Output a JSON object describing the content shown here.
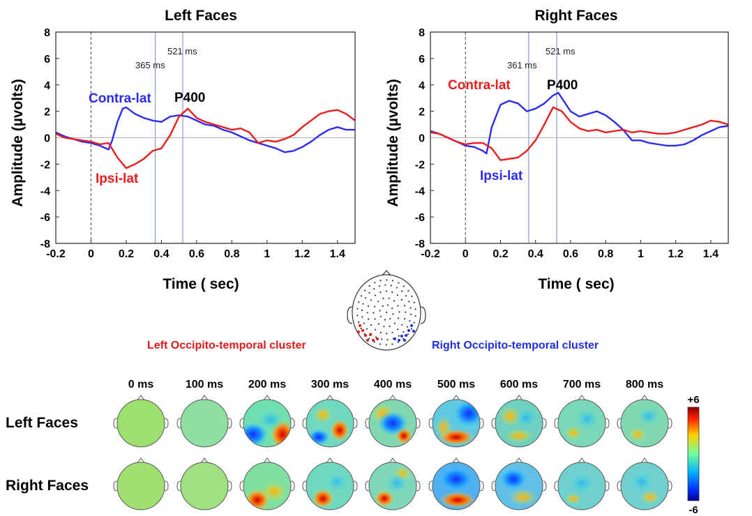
{
  "colors": {
    "contra_left": "#2b2bf5",
    "ipsi_left": "#ea1c1c",
    "contra_right": "#ea1c1c",
    "ipsi_right": "#2b2bf5",
    "marker_line": "#8aa8d8",
    "cluster_left": "#e0191c",
    "cluster_right": "#1f2fe0"
  },
  "chart_data": [
    {
      "type": "line",
      "title": "Left Faces",
      "xlabel": "Time ( sec)",
      "ylabel": "Amplitude (µvolts)",
      "xlim": [
        -0.2,
        1.5
      ],
      "ylim": [
        -8,
        8
      ],
      "xticks": [
        "-0.2",
        "0",
        "0.2",
        "0.4",
        "0.6",
        "0.8",
        "1",
        "1.2",
        "1.4"
      ],
      "yticks": [
        "8",
        "6",
        "4",
        "2",
        "0",
        "-2",
        "-4",
        "-6",
        "-8"
      ],
      "markers": [
        {
          "t": 0.365,
          "label": "365 ms"
        },
        {
          "t": 0.521,
          "label": "521 ms"
        }
      ],
      "annotations": {
        "peak": "P400",
        "contra": "Contra-lat",
        "ipsi": "Ipsi-lat"
      },
      "series": [
        {
          "name": "Contra-lat",
          "x": [
            -0.2,
            -0.15,
            -0.1,
            -0.05,
            0,
            0.05,
            0.1,
            0.12,
            0.15,
            0.18,
            0.2,
            0.25,
            0.3,
            0.35,
            0.4,
            0.45,
            0.5,
            0.55,
            0.6,
            0.65,
            0.7,
            0.75,
            0.8,
            0.85,
            0.9,
            0.95,
            1.0,
            1.05,
            1.1,
            1.15,
            1.2,
            1.25,
            1.3,
            1.35,
            1.4,
            1.45,
            1.5
          ],
          "y": [
            0.4,
            0.1,
            -0.1,
            -0.3,
            -0.4,
            -0.6,
            -0.9,
            -0.2,
            1.2,
            2.2,
            2.3,
            1.8,
            1.5,
            1.3,
            1.2,
            1.6,
            1.7,
            1.6,
            1.3,
            1.0,
            0.9,
            0.6,
            0.4,
            0.1,
            -0.2,
            -0.4,
            -0.6,
            -0.8,
            -1.1,
            -1.0,
            -0.7,
            -0.3,
            0.2,
            0.6,
            0.8,
            0.6,
            0.6
          ]
        },
        {
          "name": "Ipsi-lat",
          "x": [
            -0.2,
            -0.15,
            -0.1,
            -0.05,
            0,
            0.05,
            0.1,
            0.15,
            0.2,
            0.25,
            0.3,
            0.35,
            0.4,
            0.45,
            0.5,
            0.55,
            0.6,
            0.65,
            0.7,
            0.75,
            0.8,
            0.85,
            0.9,
            0.95,
            1.0,
            1.05,
            1.1,
            1.15,
            1.2,
            1.25,
            1.3,
            1.35,
            1.4,
            1.45,
            1.5
          ],
          "y": [
            0.3,
            0.0,
            -0.1,
            -0.2,
            -0.3,
            -0.5,
            -0.4,
            -1.5,
            -2.3,
            -2.0,
            -1.6,
            -1.0,
            -0.8,
            0.2,
            1.6,
            2.2,
            1.5,
            1.2,
            1.0,
            0.8,
            0.6,
            0.7,
            0.4,
            -0.4,
            -0.2,
            -0.3,
            -0.1,
            0.2,
            0.8,
            1.3,
            1.8,
            2.0,
            2.1,
            1.8,
            1.3
          ]
        }
      ]
    },
    {
      "type": "line",
      "title": "Right Faces",
      "xlabel": "Time ( sec)",
      "ylabel": "Amplitude (µvolts)",
      "xlim": [
        -0.2,
        1.5
      ],
      "ylim": [
        -8,
        8
      ],
      "xticks": [
        "-0.2",
        "0",
        "0.2",
        "0.4",
        "0.6",
        "0.8",
        "1",
        "1.2",
        "1.4"
      ],
      "yticks": [
        "8",
        "6",
        "4",
        "2",
        "0",
        "-2",
        "-4",
        "-6",
        "-8"
      ],
      "markers": [
        {
          "t": 0.361,
          "label": "361 ms"
        },
        {
          "t": 0.521,
          "label": "521 ms"
        }
      ],
      "annotations": {
        "peak": "P400",
        "contra": "Contra-lat",
        "ipsi": "Ipsi-lat"
      },
      "series": [
        {
          "name": "Contra-lat",
          "x": [
            -0.2,
            -0.15,
            -0.1,
            -0.05,
            0,
            0.05,
            0.1,
            0.12,
            0.15,
            0.2,
            0.25,
            0.3,
            0.35,
            0.4,
            0.45,
            0.5,
            0.53,
            0.55,
            0.6,
            0.65,
            0.7,
            0.75,
            0.8,
            0.85,
            0.9,
            0.95,
            1.0,
            1.05,
            1.1,
            1.15,
            1.2,
            1.25,
            1.3,
            1.35,
            1.4,
            1.45,
            1.5
          ],
          "y": [
            0.5,
            0.3,
            0.0,
            -0.3,
            -0.6,
            -0.7,
            -1.0,
            -1.2,
            0.8,
            2.5,
            2.8,
            2.6,
            2.0,
            2.2,
            2.6,
            3.2,
            3.4,
            3.0,
            2.0,
            1.6,
            1.8,
            2.0,
            1.7,
            1.2,
            0.6,
            -0.2,
            -0.2,
            -0.4,
            -0.5,
            -0.6,
            -0.6,
            -0.5,
            -0.2,
            0.2,
            0.5,
            0.8,
            0.9
          ]
        },
        {
          "name": "Ipsi-lat",
          "x": [
            -0.2,
            -0.15,
            -0.1,
            -0.05,
            0,
            0.05,
            0.1,
            0.15,
            0.2,
            0.25,
            0.3,
            0.35,
            0.4,
            0.45,
            0.5,
            0.55,
            0.6,
            0.65,
            0.7,
            0.75,
            0.8,
            0.85,
            0.9,
            0.95,
            1.0,
            1.05,
            1.1,
            1.15,
            1.2,
            1.25,
            1.3,
            1.35,
            1.4,
            1.45,
            1.5
          ],
          "y": [
            0.4,
            0.3,
            0.0,
            -0.3,
            -0.5,
            -0.4,
            -0.4,
            -0.8,
            -1.7,
            -1.6,
            -1.5,
            -1.0,
            -0.2,
            1.0,
            2.3,
            2.0,
            1.2,
            0.7,
            0.5,
            0.6,
            0.4,
            0.5,
            0.6,
            0.4,
            0.5,
            0.4,
            0.3,
            0.3,
            0.4,
            0.6,
            0.8,
            1.0,
            1.3,
            1.2,
            1.0
          ]
        }
      ]
    }
  ],
  "head_map": {
    "left_cluster_label": "Left Occipito-temporal cluster",
    "right_cluster_label": "Right Occipito-temporal cluster"
  },
  "topoplots": {
    "times": [
      "0 ms",
      "100 ms",
      "200 ms",
      "300 ms",
      "400 ms",
      "500 ms",
      "600 ms",
      "700 ms",
      "800 ms"
    ],
    "rows": [
      "Left Faces",
      "Right Faces"
    ],
    "colorbar": {
      "max": "+6",
      "min": "-6"
    }
  }
}
